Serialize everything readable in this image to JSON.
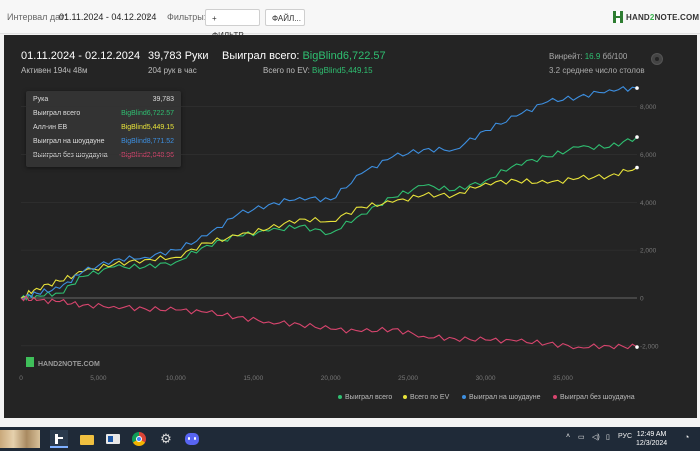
{
  "topbar": {
    "interval_label": "Интервал дат:",
    "interval_value": "01.11.2024 - 04.12.2024",
    "filters_label": "Фильтры:",
    "filter_button": "ФИЛЬТР...",
    "file_button": "ФАЙЛ...",
    "logo_part1": "HAND",
    "logo_part2": "2",
    "logo_part3": "NOTE.COM"
  },
  "summary": {
    "range": "01.11.2024 - 02.12.2024",
    "active": "Активен 194ч 48м",
    "hands": "39,783 Руки",
    "hands_per_hour": "204 рук в час",
    "won_label": "Выиграл всего:",
    "won_value": "BigBlind6,722.57",
    "ev_label": "Всего по EV:",
    "ev_value": "BigBlind5,449.15",
    "winrate_label": "Винрейт:",
    "winrate_value": "16.9",
    "winrate_suffix": "бб/100",
    "tables": "3.2 среднее число столов"
  },
  "tooltip": {
    "rows": [
      {
        "label": "Рука",
        "value": "39,783",
        "color": "#dddddd"
      },
      {
        "label": "Выиграл всего",
        "value": "BigBlind6,722.57",
        "color": "#2fbf71"
      },
      {
        "label": "Алл-ин ЕВ",
        "value": "BigBlind5,449.15",
        "color": "#e8e33a"
      },
      {
        "label": "Выиграл на шоудауне",
        "value": "BigBlind8,771.52",
        "color": "#3d8fe0"
      },
      {
        "label": "Выиграл без шоудауна",
        "value": "-BigBlind2,048.96",
        "color": "#d8456e"
      }
    ]
  },
  "watermark": "HAND2NOTE.COM",
  "chart_data": {
    "type": "line",
    "x_ticks": [
      0,
      5000,
      10000,
      15000,
      20000,
      25000,
      30000,
      35000
    ],
    "x_tick_labels": [
      "0",
      "5,000",
      "10,000",
      "15,000",
      "20,000",
      "25,000",
      "30,000",
      "35,000"
    ],
    "y_ticks": [
      -2000,
      0,
      2000,
      4000,
      6000,
      8000
    ],
    "y_tick_labels": [
      "-2,000",
      "0",
      "2,000",
      "4,000",
      "6,000",
      "8,000"
    ],
    "xlim": [
      0,
      39783
    ],
    "ylim": [
      -2800,
      8900
    ],
    "x": [
      0,
      1000,
      2500,
      4000,
      6000,
      8000,
      10000,
      12000,
      14000,
      16000,
      18000,
      20000,
      22000,
      24000,
      26000,
      28000,
      30000,
      32000,
      34000,
      36000,
      38000,
      39783
    ],
    "series": [
      {
        "name": "Выиграл всего",
        "color": "#2fbf71",
        "values": [
          0,
          100,
          200,
          900,
          1300,
          1300,
          1500,
          2200,
          2600,
          2800,
          3000,
          2700,
          3500,
          4200,
          4700,
          4500,
          4900,
          5600,
          5900,
          6300,
          6300,
          6722.57
        ]
      },
      {
        "name": "Всего по EV",
        "color": "#e8e33a",
        "values": [
          0,
          400,
          700,
          1100,
          1400,
          1600,
          1700,
          2300,
          2600,
          2900,
          3300,
          3200,
          3800,
          4000,
          4300,
          4300,
          4800,
          4900,
          4800,
          5000,
          5100,
          5449.15
        ]
      },
      {
        "name": "Выиграл на шоудауне",
        "color": "#3d8fe0",
        "values": [
          0,
          200,
          400,
          1100,
          1600,
          1700,
          2000,
          2600,
          3500,
          3900,
          4200,
          4100,
          5200,
          5900,
          6200,
          6200,
          7000,
          7600,
          8200,
          8400,
          8700,
          8771.52
        ]
      },
      {
        "name": "Выиграл без шоудауна",
        "color": "#d8456e",
        "values": [
          0,
          -100,
          -150,
          -300,
          -350,
          -450,
          -500,
          -600,
          -800,
          -1000,
          -1100,
          -1300,
          -1400,
          -1300,
          -1600,
          -1700,
          -1750,
          -1800,
          -1900,
          -2050,
          -2000,
          -2048.96
        ]
      }
    ]
  },
  "legend": [
    {
      "label": "Выиграл всего",
      "color": "#2fbf71"
    },
    {
      "label": "Всего по EV",
      "color": "#e8e33a"
    },
    {
      "label": "Выиграл на шоудауне",
      "color": "#3d8fe0"
    },
    {
      "label": "Выиграл без шоудауна",
      "color": "#d8456e"
    }
  ],
  "taskbar": {
    "tray_lang": "РУС",
    "time": "12:49 AM",
    "date": "12/3/2024"
  }
}
